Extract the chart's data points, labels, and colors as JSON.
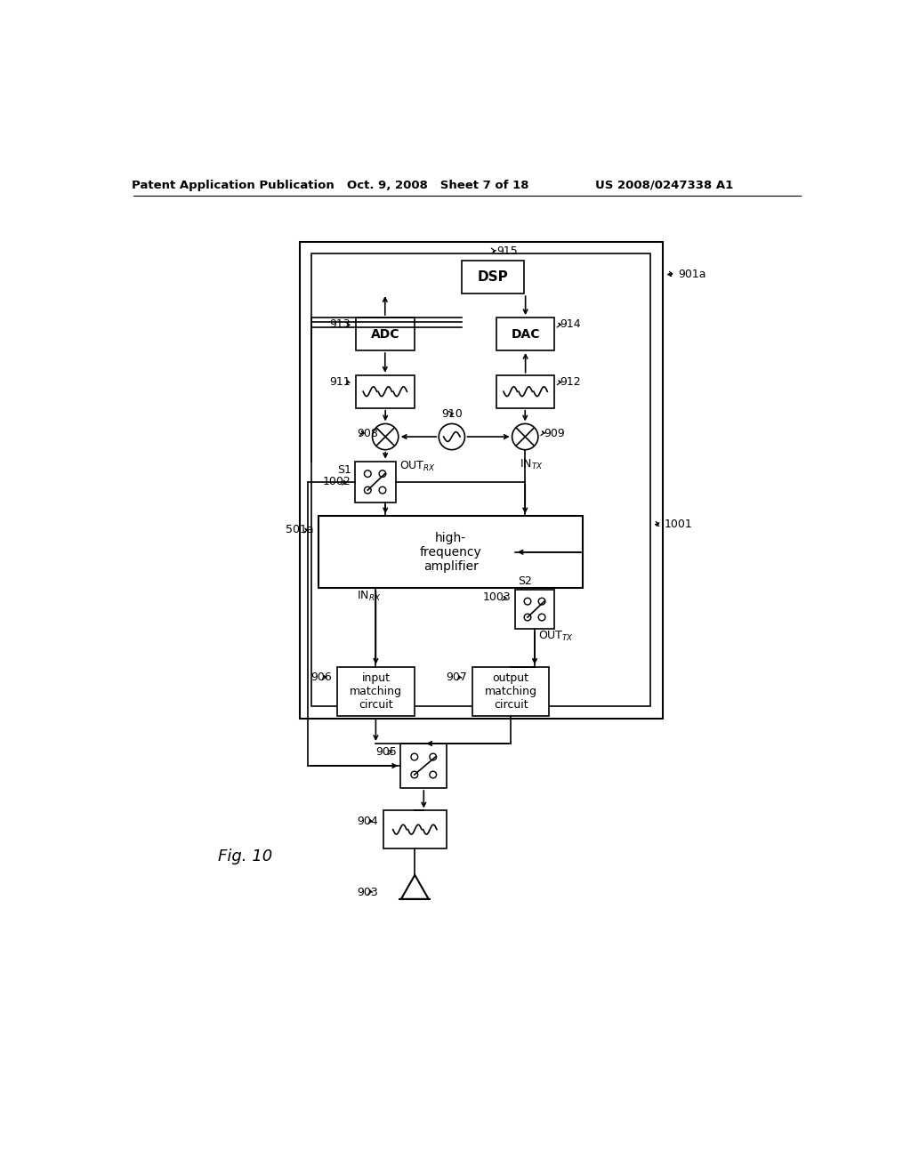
{
  "title_left": "Patent Application Publication",
  "title_center": "Oct. 9, 2008   Sheet 7 of 18",
  "title_right": "US 2008/0247338 A1",
  "fig_label": "Fig. 10",
  "background": "#ffffff",
  "line_color": "#000000",
  "text_color": "#000000"
}
